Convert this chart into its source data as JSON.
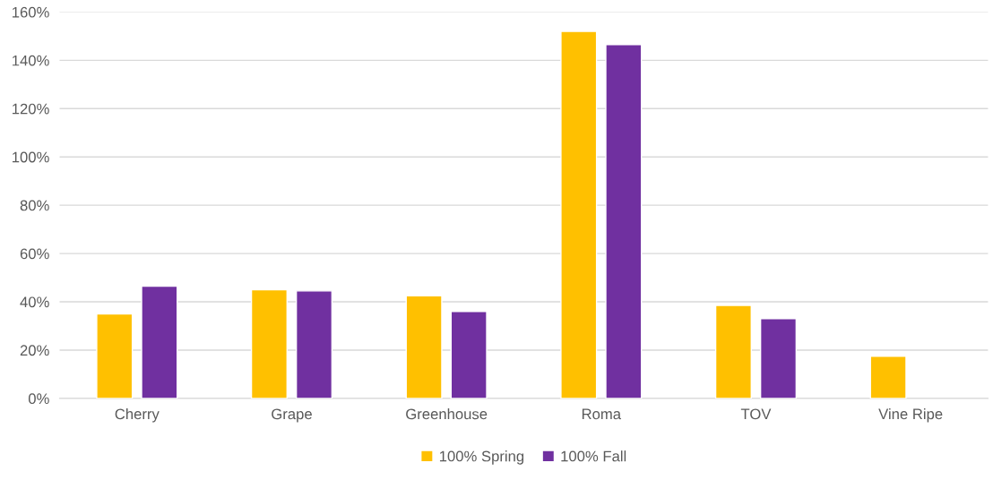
{
  "chart_data": {
    "type": "bar",
    "categories": [
      "Cherry",
      "Grape",
      "Greenhouse",
      "Roma",
      "TOV",
      "Vine Ripe"
    ],
    "series": [
      {
        "name": "100% Spring",
        "color": "#ffc000",
        "values": [
          35,
          45,
          42.5,
          152,
          38.5,
          17.5
        ]
      },
      {
        "name": "100% Fall",
        "color": "#7030a0",
        "values": [
          46.5,
          44.5,
          36,
          146.5,
          33,
          null
        ]
      }
    ],
    "ylim": [
      0,
      160
    ],
    "yticks": [
      {
        "value": 0,
        "label": "0%"
      },
      {
        "value": 20,
        "label": "20%"
      },
      {
        "value": 40,
        "label": "40%"
      },
      {
        "value": 60,
        "label": "60%"
      },
      {
        "value": 80,
        "label": "80%"
      },
      {
        "value": 100,
        "label": "100%"
      },
      {
        "value": 120,
        "label": "120%"
      },
      {
        "value": 140,
        "label": "140%"
      },
      {
        "value": 160,
        "label": "160%"
      }
    ],
    "grid": "y",
    "legend": "bottom"
  }
}
